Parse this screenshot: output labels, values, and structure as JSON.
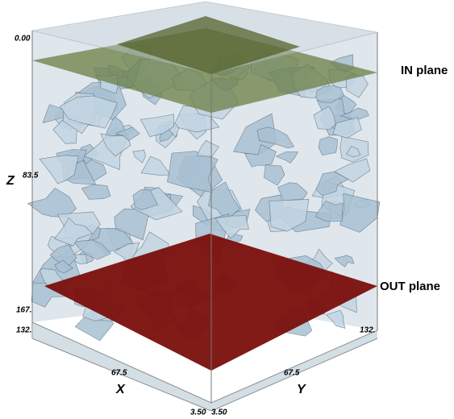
{
  "axes": {
    "z": {
      "label": "Z",
      "ticks": [
        "0.00",
        "83.5",
        "167."
      ]
    },
    "x": {
      "label": "X",
      "ticks": [
        "132.",
        "67.5",
        "3.50"
      ]
    },
    "y": {
      "label": "Y",
      "ticks": [
        "3.50",
        "67.5",
        "132."
      ]
    }
  },
  "planes": {
    "in": "IN plane",
    "out": "OUT plane"
  }
}
